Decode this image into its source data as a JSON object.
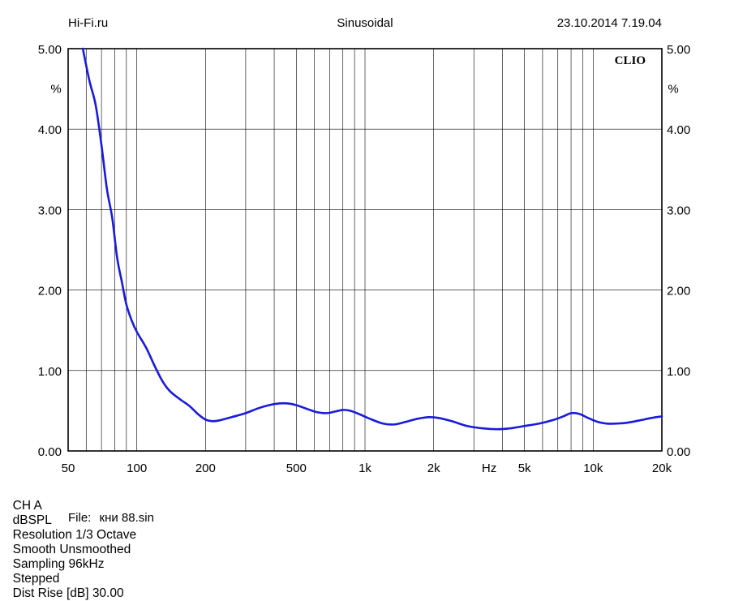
{
  "header": {
    "left": "Hi-Fi.ru",
    "center": "Sinusoidal",
    "right": "23.10.2014 7.19.04"
  },
  "brand": "CLIO",
  "footer": {
    "channel": "CH A",
    "unit": "dBSPL",
    "resolution": "Resolution 1/3 Octave",
    "smooth": "Smooth Unsmoothed",
    "sampling": "Sampling 96kHz",
    "mode": "Stepped",
    "dist_rise": "Dist Rise [dB] 30.00"
  },
  "file": {
    "label": "File:",
    "name": "кни 88.sin"
  },
  "colors": {
    "series": "#1a1adc",
    "grid": "#000000",
    "background": "#ffffff"
  },
  "chart_data": {
    "type": "line",
    "title": "",
    "xlabel": "Hz",
    "ylabel": "%",
    "x_scale": "log",
    "xlim": [
      50,
      20000
    ],
    "ylim": [
      0,
      5
    ],
    "grid": true,
    "x_ticks": [
      {
        "value": 50,
        "label": "50"
      },
      {
        "value": 100,
        "label": "100"
      },
      {
        "value": 200,
        "label": "200"
      },
      {
        "value": 500,
        "label": "500"
      },
      {
        "value": 1000,
        "label": "1k"
      },
      {
        "value": 2000,
        "label": "2k"
      },
      {
        "value": 5000,
        "label": "5k"
      },
      {
        "value": 10000,
        "label": "10k"
      },
      {
        "value": 20000,
        "label": "20k"
      }
    ],
    "y_ticks": [
      {
        "value": 0,
        "label": "0.00"
      },
      {
        "value": 1,
        "label": "1.00"
      },
      {
        "value": 2,
        "label": "2.00"
      },
      {
        "value": 3,
        "label": "3.00"
      },
      {
        "value": 4,
        "label": "4.00"
      },
      {
        "value": 5,
        "label": "5.00"
      }
    ],
    "y_unit_label": "%",
    "x_unit_label": "Hz",
    "x_unit_position": 3500,
    "series": [
      {
        "x": [
          58,
          62,
          66,
          70,
          74,
          78,
          82,
          86,
          90,
          95,
          100,
          110,
          120,
          130,
          140,
          155,
          170,
          185,
          200,
          215,
          230,
          260,
          300,
          340,
          380,
          420,
          460,
          500,
          560,
          620,
          680,
          740,
          800,
          860,
          940,
          1050,
          1200,
          1350,
          1500,
          1700,
          1900,
          2100,
          2400,
          2800,
          3300,
          3800,
          4300,
          5000,
          5800,
          6600,
          7400,
          8000,
          8700,
          9500,
          10500,
          11500,
          12500,
          14000,
          16000,
          18000,
          20000
        ],
        "y": [
          5.0,
          4.6,
          4.3,
          3.8,
          3.25,
          2.9,
          2.4,
          2.1,
          1.82,
          1.62,
          1.48,
          1.28,
          1.05,
          0.86,
          0.74,
          0.64,
          0.56,
          0.46,
          0.39,
          0.37,
          0.38,
          0.42,
          0.47,
          0.53,
          0.57,
          0.59,
          0.59,
          0.57,
          0.52,
          0.48,
          0.47,
          0.49,
          0.51,
          0.5,
          0.46,
          0.4,
          0.34,
          0.33,
          0.36,
          0.4,
          0.42,
          0.41,
          0.37,
          0.31,
          0.28,
          0.27,
          0.28,
          0.31,
          0.34,
          0.38,
          0.43,
          0.47,
          0.46,
          0.41,
          0.36,
          0.34,
          0.34,
          0.35,
          0.38,
          0.41,
          0.43
        ]
      }
    ]
  }
}
